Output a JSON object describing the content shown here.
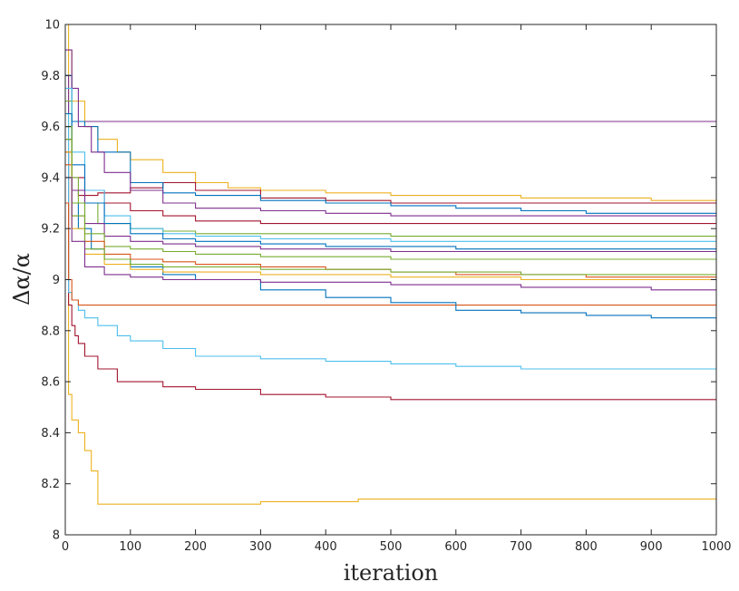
{
  "chart_data": {
    "type": "line",
    "title": "",
    "xlabel": "iteration",
    "ylabel": "Δα/α",
    "xlim": [
      0,
      1000
    ],
    "ylim": [
      8,
      10
    ],
    "xticks": [
      "0",
      "100",
      "200",
      "300",
      "400",
      "500",
      "600",
      "700",
      "800",
      "900",
      "1000"
    ],
    "yticks": [
      "8",
      "8.2",
      "8.4",
      "8.6",
      "8.8",
      "9",
      "9.2",
      "9.4",
      "9.6",
      "9.8",
      "10"
    ],
    "grid": false,
    "legend": "none",
    "series": [
      {
        "color": "#EDB120",
        "x": [
          0,
          5,
          10,
          20,
          30,
          40,
          50,
          60,
          100,
          150,
          200,
          300,
          450,
          500,
          600,
          800,
          1000
        ],
        "y": [
          10.0,
          8.55,
          8.45,
          8.4,
          8.33,
          8.25,
          8.12,
          8.12,
          8.12,
          8.12,
          8.12,
          8.13,
          8.14,
          8.14,
          8.14,
          8.14,
          8.14
        ]
      },
      {
        "color": "#A2142F",
        "x": [
          0,
          5,
          10,
          15,
          20,
          30,
          50,
          80,
          100,
          150,
          200,
          300,
          400,
          500,
          600,
          800,
          1000
        ],
        "y": [
          9.5,
          8.9,
          8.82,
          8.78,
          8.75,
          8.7,
          8.65,
          8.6,
          8.6,
          8.58,
          8.57,
          8.55,
          8.54,
          8.53,
          8.53,
          8.53,
          8.53
        ]
      },
      {
        "color": "#4DBEEE",
        "x": [
          0,
          5,
          10,
          20,
          30,
          50,
          80,
          100,
          150,
          200,
          300,
          400,
          500,
          600,
          700,
          800,
          1000
        ],
        "y": [
          9.7,
          8.95,
          8.92,
          8.88,
          8.85,
          8.82,
          8.78,
          8.76,
          8.73,
          8.7,
          8.69,
          8.68,
          8.67,
          8.66,
          8.65,
          8.65,
          8.64
        ]
      },
      {
        "color": "#D95319",
        "x": [
          0,
          5,
          10,
          20,
          30,
          1000
        ],
        "y": [
          9.3,
          9.0,
          8.92,
          8.9,
          8.9,
          8.9
        ]
      },
      {
        "color": "#0072BD",
        "x": [
          0,
          10,
          20,
          40,
          60,
          100,
          150,
          200,
          300,
          400,
          500,
          600,
          700,
          800,
          900,
          1000
        ],
        "y": [
          9.6,
          9.3,
          9.2,
          9.12,
          9.08,
          9.05,
          9.02,
          9.0,
          8.96,
          8.93,
          8.91,
          8.88,
          8.87,
          8.86,
          8.85,
          8.83
        ]
      },
      {
        "color": "#7E2F8E",
        "x": [
          0,
          5,
          10,
          15,
          1000
        ],
        "y": [
          9.8,
          9.65,
          9.62,
          9.62,
          9.62
        ]
      },
      {
        "color": "#EDB120",
        "x": [
          0,
          10,
          30,
          50,
          80,
          100,
          150,
          200,
          250,
          300,
          400,
          500,
          600,
          700,
          800,
          900,
          1000
        ],
        "y": [
          9.9,
          9.7,
          9.6,
          9.55,
          9.5,
          9.47,
          9.42,
          9.38,
          9.36,
          9.35,
          9.34,
          9.33,
          9.33,
          9.32,
          9.32,
          9.31,
          9.3
        ]
      },
      {
        "color": "#A2142F",
        "x": [
          0,
          10,
          20,
          50,
          100,
          150,
          200,
          300,
          400,
          500,
          600,
          700,
          800,
          1000
        ],
        "y": [
          9.5,
          9.35,
          9.33,
          9.34,
          9.36,
          9.38,
          9.35,
          9.32,
          9.31,
          9.3,
          9.3,
          9.3,
          9.3,
          9.29
        ]
      },
      {
        "color": "#0072BD",
        "x": [
          0,
          10,
          30,
          50,
          100,
          150,
          200,
          300,
          400,
          500,
          600,
          700,
          800,
          900,
          1000
        ],
        "y": [
          9.8,
          9.62,
          9.6,
          9.5,
          9.38,
          9.34,
          9.33,
          9.31,
          9.3,
          9.29,
          9.28,
          9.27,
          9.26,
          9.26,
          9.25
        ]
      },
      {
        "color": "#7E2F8E",
        "x": [
          0,
          10,
          20,
          40,
          60,
          100,
          150,
          200,
          300,
          400,
          500,
          600,
          700,
          800,
          900,
          1000
        ],
        "y": [
          9.9,
          9.75,
          9.6,
          9.5,
          9.42,
          9.35,
          9.3,
          9.28,
          9.27,
          9.26,
          9.25,
          9.25,
          9.25,
          9.25,
          9.25,
          9.25
        ]
      },
      {
        "color": "#A2142F",
        "x": [
          0,
          10,
          30,
          60,
          100,
          150,
          200,
          300,
          400,
          500,
          600,
          700,
          800,
          900,
          1000
        ],
        "y": [
          9.6,
          9.4,
          9.35,
          9.3,
          9.27,
          9.25,
          9.23,
          9.22,
          9.22,
          9.22,
          9.22,
          9.22,
          9.22,
          9.22,
          9.22
        ]
      },
      {
        "color": "#77AC30",
        "x": [
          0,
          10,
          20,
          50,
          100,
          150,
          200,
          300,
          400,
          500,
          600,
          700,
          800,
          900,
          1000
        ],
        "y": [
          9.7,
          9.4,
          9.3,
          9.22,
          9.2,
          9.19,
          9.18,
          9.18,
          9.18,
          9.17,
          9.17,
          9.17,
          9.17,
          9.17,
          9.17
        ]
      },
      {
        "color": "#4DBEEE",
        "x": [
          0,
          10,
          30,
          60,
          100,
          150,
          200,
          300,
          400,
          500,
          600,
          700,
          800,
          900,
          1000
        ],
        "y": [
          9.75,
          9.5,
          9.35,
          9.25,
          9.2,
          9.18,
          9.17,
          9.16,
          9.16,
          9.15,
          9.15,
          9.15,
          9.15,
          9.15,
          9.15
        ]
      },
      {
        "color": "#0072BD",
        "x": [
          0,
          10,
          30,
          60,
          100,
          150,
          200,
          300,
          400,
          500,
          600,
          700,
          800,
          900,
          1000
        ],
        "y": [
          9.65,
          9.45,
          9.3,
          9.22,
          9.18,
          9.16,
          9.15,
          9.14,
          9.13,
          9.13,
          9.12,
          9.12,
          9.12,
          9.12,
          9.12
        ]
      },
      {
        "color": "#7E2F8E",
        "x": [
          0,
          10,
          30,
          60,
          100,
          150,
          200,
          300,
          400,
          500,
          600,
          700,
          800,
          900,
          1000
        ],
        "y": [
          9.55,
          9.35,
          9.22,
          9.17,
          9.15,
          9.14,
          9.13,
          9.12,
          9.12,
          9.11,
          9.11,
          9.11,
          9.11,
          9.11,
          9.1
        ]
      },
      {
        "color": "#77AC30",
        "x": [
          0,
          10,
          30,
          60,
          100,
          150,
          200,
          300,
          400,
          500,
          600,
          700,
          800,
          900,
          1000
        ],
        "y": [
          9.6,
          9.3,
          9.18,
          9.13,
          9.12,
          9.11,
          9.1,
          9.09,
          9.09,
          9.08,
          9.08,
          9.08,
          9.08,
          9.08,
          9.08
        ]
      },
      {
        "color": "#D95319",
        "x": [
          0,
          10,
          30,
          60,
          100,
          150,
          200,
          300,
          400,
          500,
          600,
          700,
          800,
          900,
          1000
        ],
        "y": [
          9.45,
          9.25,
          9.15,
          9.1,
          9.08,
          9.07,
          9.06,
          9.05,
          9.04,
          9.03,
          9.02,
          9.02,
          9.01,
          9.01,
          9.01
        ]
      },
      {
        "color": "#EDB120",
        "x": [
          0,
          10,
          30,
          60,
          100,
          150,
          200,
          300,
          400,
          500,
          600,
          700,
          800,
          900,
          1000
        ],
        "y": [
          9.5,
          9.2,
          9.1,
          9.06,
          9.04,
          9.03,
          9.03,
          9.02,
          9.02,
          9.01,
          9.01,
          9.0,
          9.0,
          9.0,
          9.0
        ]
      },
      {
        "color": "#77AC30",
        "x": [
          0,
          10,
          30,
          60,
          100,
          150,
          200,
          300,
          400,
          500,
          600,
          700,
          800,
          900,
          1000
        ],
        "y": [
          9.55,
          9.25,
          9.12,
          9.08,
          9.06,
          9.05,
          9.05,
          9.04,
          9.04,
          9.03,
          9.03,
          9.02,
          9.02,
          9.02,
          9.02
        ]
      },
      {
        "color": "#7E2F8E",
        "x": [
          0,
          10,
          30,
          60,
          100,
          150,
          200,
          300,
          400,
          500,
          600,
          700,
          800,
          900,
          1000
        ],
        "y": [
          9.4,
          9.15,
          9.05,
          9.02,
          9.01,
          9.0,
          9.0,
          8.99,
          8.99,
          8.98,
          8.98,
          8.97,
          8.97,
          8.96,
          8.96
        ]
      }
    ]
  }
}
